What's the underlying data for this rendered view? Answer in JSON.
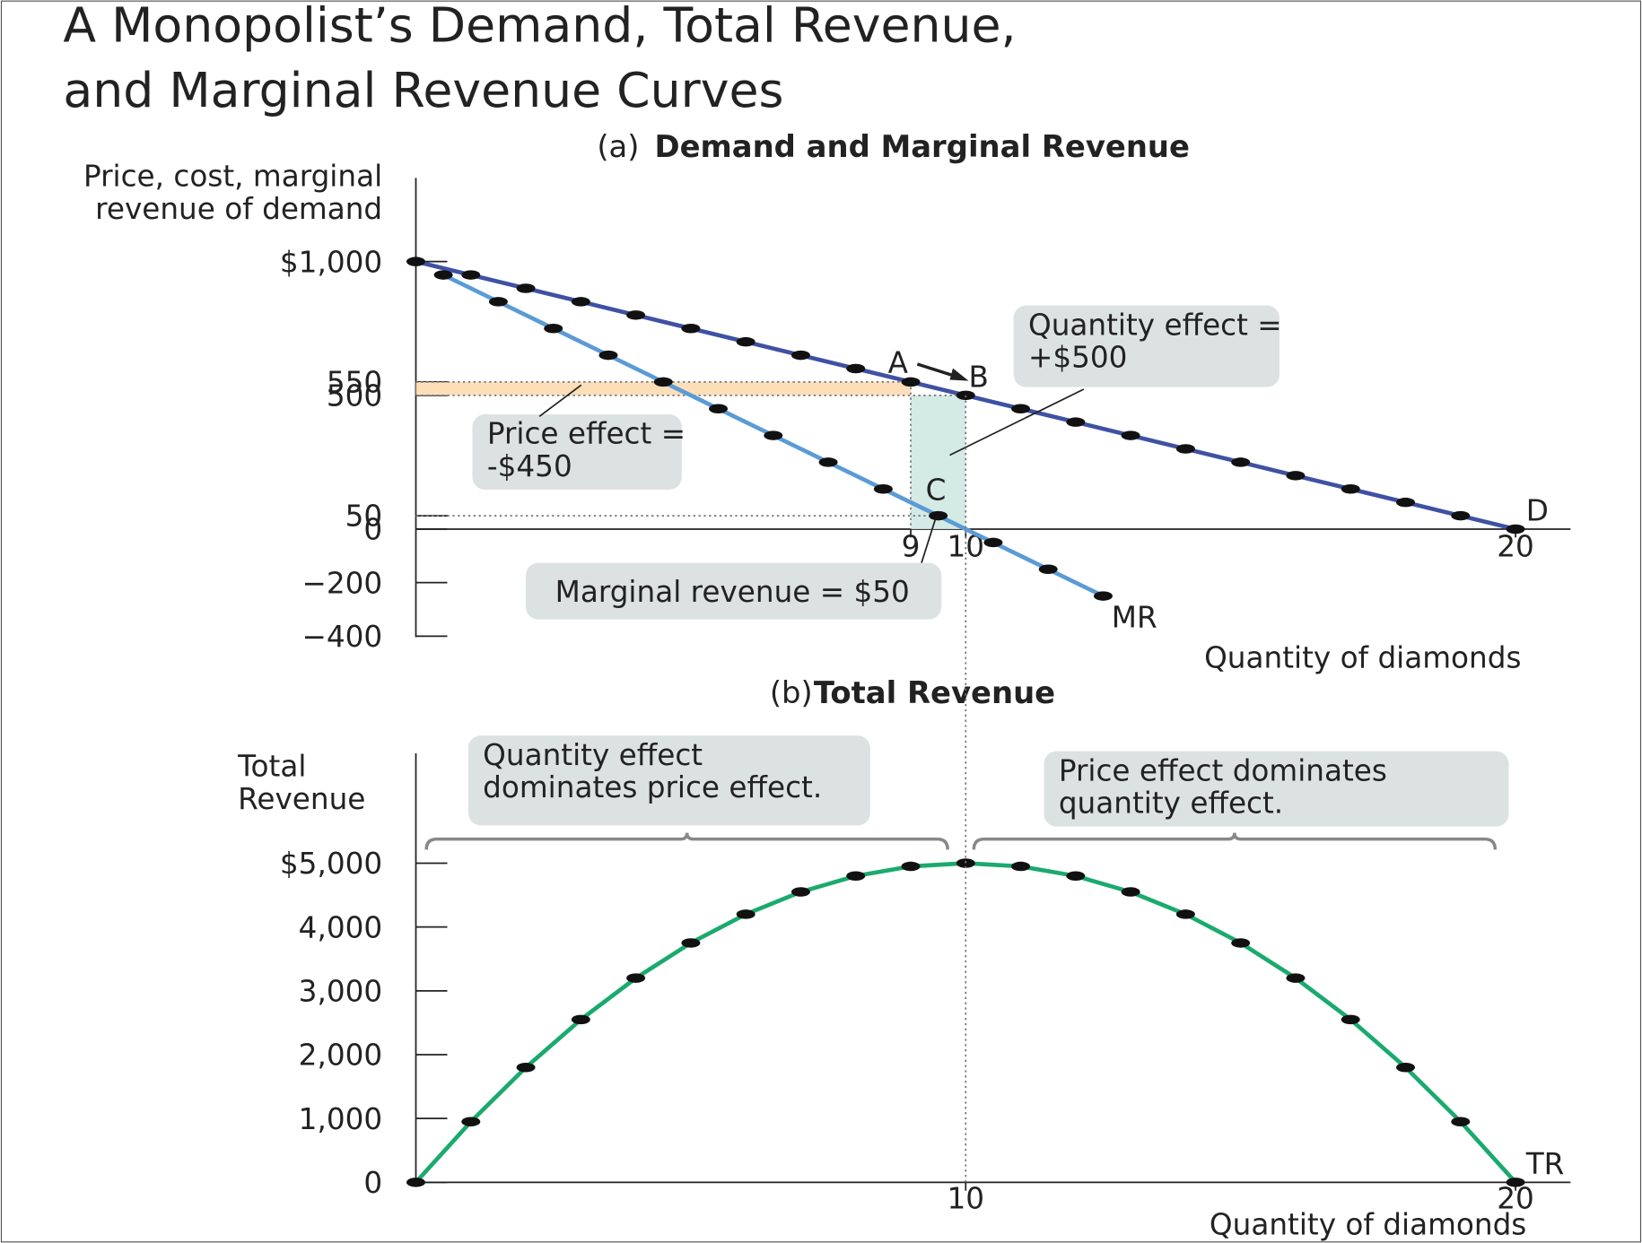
{
  "title": [
    "A Monopolist’s Demand, Total Revenue,",
    "and Marginal Revenue Curves"
  ],
  "chart_data": [
    {
      "type": "line",
      "panel": "(a)",
      "title": "Demand and Marginal Revenue",
      "y_label": [
        "Price, cost, marginal",
        "revenue of demand"
      ],
      "x_label": "Quantity of diamonds",
      "xlim": [
        0,
        21
      ],
      "ylim": [
        -400,
        1000
      ],
      "xticks": [
        9,
        10,
        20
      ],
      "yticks": [
        {
          "value": -400,
          "label": "−400"
        },
        {
          "value": -200,
          "label": "−200"
        },
        0,
        50,
        500,
        550,
        {
          "value": 1000,
          "label": "$1,000"
        }
      ],
      "series": [
        {
          "name": "D",
          "color": "#3f51a3",
          "x": [
            0,
            1,
            2,
            3,
            4,
            5,
            6,
            7,
            8,
            9,
            10,
            11,
            12,
            13,
            14,
            15,
            16,
            17,
            18,
            19,
            20
          ],
          "values": [
            1000,
            950,
            900,
            850,
            800,
            750,
            700,
            650,
            600,
            550,
            500,
            450,
            400,
            350,
            300,
            250,
            200,
            150,
            100,
            50,
            0
          ]
        },
        {
          "name": "MR",
          "color": "#5b9bd5",
          "x": [
            0.5,
            1.5,
            2.5,
            3.5,
            4.5,
            5.5,
            6.5,
            7.5,
            8.5,
            9.5,
            10.5,
            11.5,
            12.5
          ],
          "values": [
            950,
            850,
            750,
            650,
            550,
            450,
            350,
            250,
            150,
            50,
            -50,
            -150,
            -250
          ]
        }
      ],
      "point_labels": [
        "A",
        "B",
        "C"
      ],
      "annotations": [
        {
          "lines": [
            "Quantity effect =",
            "+$500"
          ]
        },
        {
          "lines": [
            "Price effect =",
            "-$450"
          ]
        },
        {
          "lines": [
            "Marginal revenue = $50"
          ]
        }
      ]
    },
    {
      "type": "line",
      "panel": "(b)",
      "title": "Total Revenue",
      "y_label": [
        "Total",
        "Revenue"
      ],
      "x_label": "Quantity of diamonds",
      "xlim": [
        0,
        21
      ],
      "ylim": [
        0,
        5000
      ],
      "xticks": [
        10,
        20
      ],
      "yticks": [
        0,
        {
          "value": 1000,
          "label": "1,000"
        },
        {
          "value": 2000,
          "label": "2,000"
        },
        {
          "value": 3000,
          "label": "3,000"
        },
        {
          "value": 4000,
          "label": "4,000"
        },
        {
          "value": 5000,
          "label": "$5,000"
        }
      ],
      "series": [
        {
          "name": "TR",
          "color": "#1aaa6e",
          "x": [
            0,
            1,
            2,
            3,
            4,
            5,
            6,
            7,
            8,
            9,
            10,
            11,
            12,
            13,
            14,
            15,
            16,
            17,
            18,
            19,
            20
          ],
          "values": [
            0,
            950,
            1800,
            2550,
            3200,
            3750,
            4200,
            4550,
            4800,
            4950,
            5000,
            4950,
            4800,
            4550,
            4200,
            3750,
            3200,
            2550,
            1800,
            950,
            0
          ]
        }
      ],
      "annotations": [
        {
          "lines": [
            "Quantity effect",
            "dominates price effect."
          ]
        },
        {
          "lines": [
            "Price effect dominates",
            "quantity effect."
          ]
        }
      ]
    }
  ]
}
